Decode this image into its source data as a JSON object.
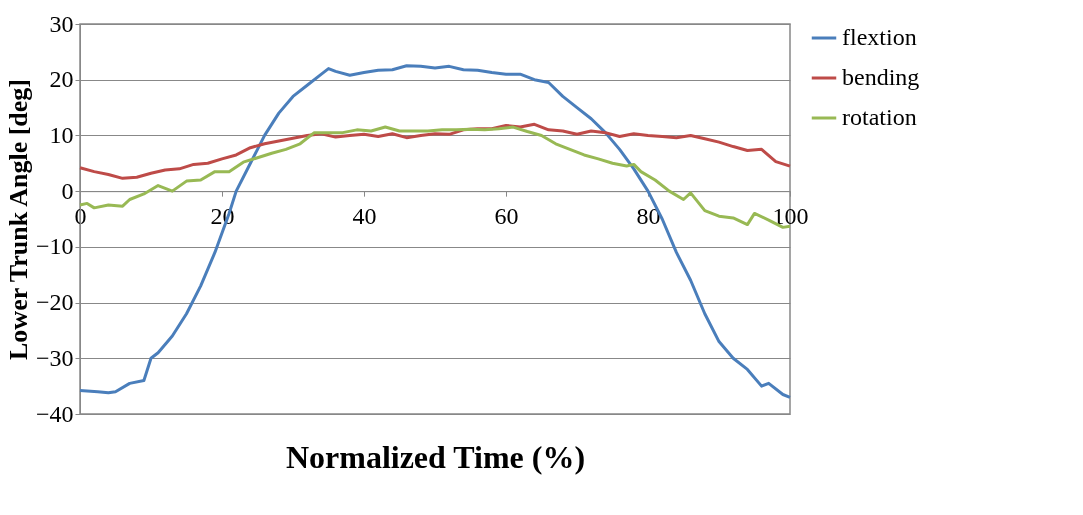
{
  "chart_data": {
    "type": "line",
    "xlabel": "Normalized Time (%)",
    "ylabel": "Lower Trunk Angle [deg]",
    "xlim": [
      0,
      100
    ],
    "xticks": [
      0,
      20,
      40,
      60,
      80,
      100
    ],
    "ylim": [
      -40,
      30
    ],
    "yticks": [
      -40,
      -30,
      -20,
      -10,
      0,
      10,
      20,
      30
    ],
    "grid": "y",
    "legend": "right",
    "line_style": "solid",
    "marker": "none",
    "series": [
      {
        "name": "flextion",
        "color": "#4a7ebb",
        "x": [
          0,
          2.5,
          4,
          5,
          7,
          9,
          10,
          11,
          13,
          15,
          17,
          19,
          21,
          22,
          24,
          26,
          28,
          30,
          32,
          34,
          35,
          36,
          38,
          40,
          42,
          44,
          46,
          48,
          50,
          52,
          54,
          56,
          58,
          60,
          62,
          64,
          66,
          68,
          70,
          72,
          74,
          76,
          78,
          80,
          82,
          84,
          86,
          88,
          90,
          92,
          94,
          96,
          97,
          99,
          100
        ],
        "values": [
          -35.8,
          -36,
          -36.2,
          -36,
          -34.5,
          -34,
          -30,
          -29,
          -26,
          -22,
          -17,
          -11,
          -4,
          0,
          5,
          10,
          14,
          17,
          19,
          21,
          22,
          21.5,
          20.8,
          21.3,
          21.7,
          21.8,
          22.5,
          22.4,
          22.1,
          22.4,
          21.8,
          21.7,
          21.3,
          21,
          21,
          20,
          19.5,
          17,
          15,
          13,
          10.5,
          7.5,
          4,
          0,
          -5,
          -11,
          -16,
          -22,
          -27,
          -30,
          -32,
          -35,
          -34.5,
          -36.5,
          -37
        ]
      },
      {
        "name": "bending",
        "color": "#be4b48",
        "x": [
          0,
          2,
          4,
          6,
          8,
          10,
          12,
          14,
          16,
          18,
          20,
          22,
          24,
          26,
          28,
          30,
          32,
          34,
          36,
          38,
          40,
          42,
          44,
          46,
          48,
          50,
          52,
          54,
          56,
          58,
          60,
          62,
          64,
          66,
          68,
          70,
          72,
          74,
          76,
          78,
          80,
          82,
          84,
          86,
          88,
          90,
          92,
          94,
          96,
          98,
          100
        ],
        "values": [
          4.2,
          3.5,
          3,
          2.3,
          2.5,
          3.2,
          3.8,
          4,
          4.8,
          5,
          5.8,
          6.5,
          7.8,
          8.5,
          9,
          9.5,
          10,
          10.3,
          9.7,
          10,
          10.2,
          9.8,
          10.3,
          9.6,
          10,
          10.3,
          10.2,
          11,
          11.2,
          11.2,
          11.8,
          11.5,
          12,
          11,
          10.8,
          10.2,
          10.8,
          10.5,
          9.8,
          10.3,
          10,
          9.8,
          9.6,
          10,
          9.4,
          8.8,
          8,
          7.3,
          7.5,
          5.3,
          4.5
        ]
      },
      {
        "name": "rotation",
        "color": "#98b954",
        "x": [
          0,
          1,
          2,
          4,
          6,
          7,
          9,
          11,
          13,
          15,
          17,
          19,
          21,
          23,
          25,
          27,
          29,
          31,
          33,
          35,
          37,
          39,
          41,
          43,
          45,
          47,
          49,
          51,
          53,
          55,
          57,
          59,
          61,
          63,
          65,
          67,
          69,
          71,
          73,
          75,
          77,
          78,
          79,
          81,
          83,
          85,
          86,
          88,
          90,
          92,
          94,
          95,
          97,
          99,
          100
        ],
        "values": [
          -2.5,
          -2.2,
          -3,
          -2.5,
          -2.7,
          -1.5,
          -0.5,
          1,
          0,
          1.8,
          2,
          3.5,
          3.5,
          5.2,
          6,
          6.8,
          7.5,
          8.5,
          10.5,
          10.5,
          10.5,
          11,
          10.8,
          11.5,
          10.8,
          10.8,
          10.8,
          11,
          11,
          11.1,
          11,
          11.2,
          11.5,
          10.7,
          10,
          8.5,
          7.5,
          6.5,
          5.8,
          5,
          4.5,
          4.8,
          3.5,
          2,
          0,
          -1.5,
          -0.3,
          -3.5,
          -4.5,
          -4.8,
          -6,
          -4,
          -5.2,
          -6.5,
          -6.3
        ]
      }
    ]
  }
}
